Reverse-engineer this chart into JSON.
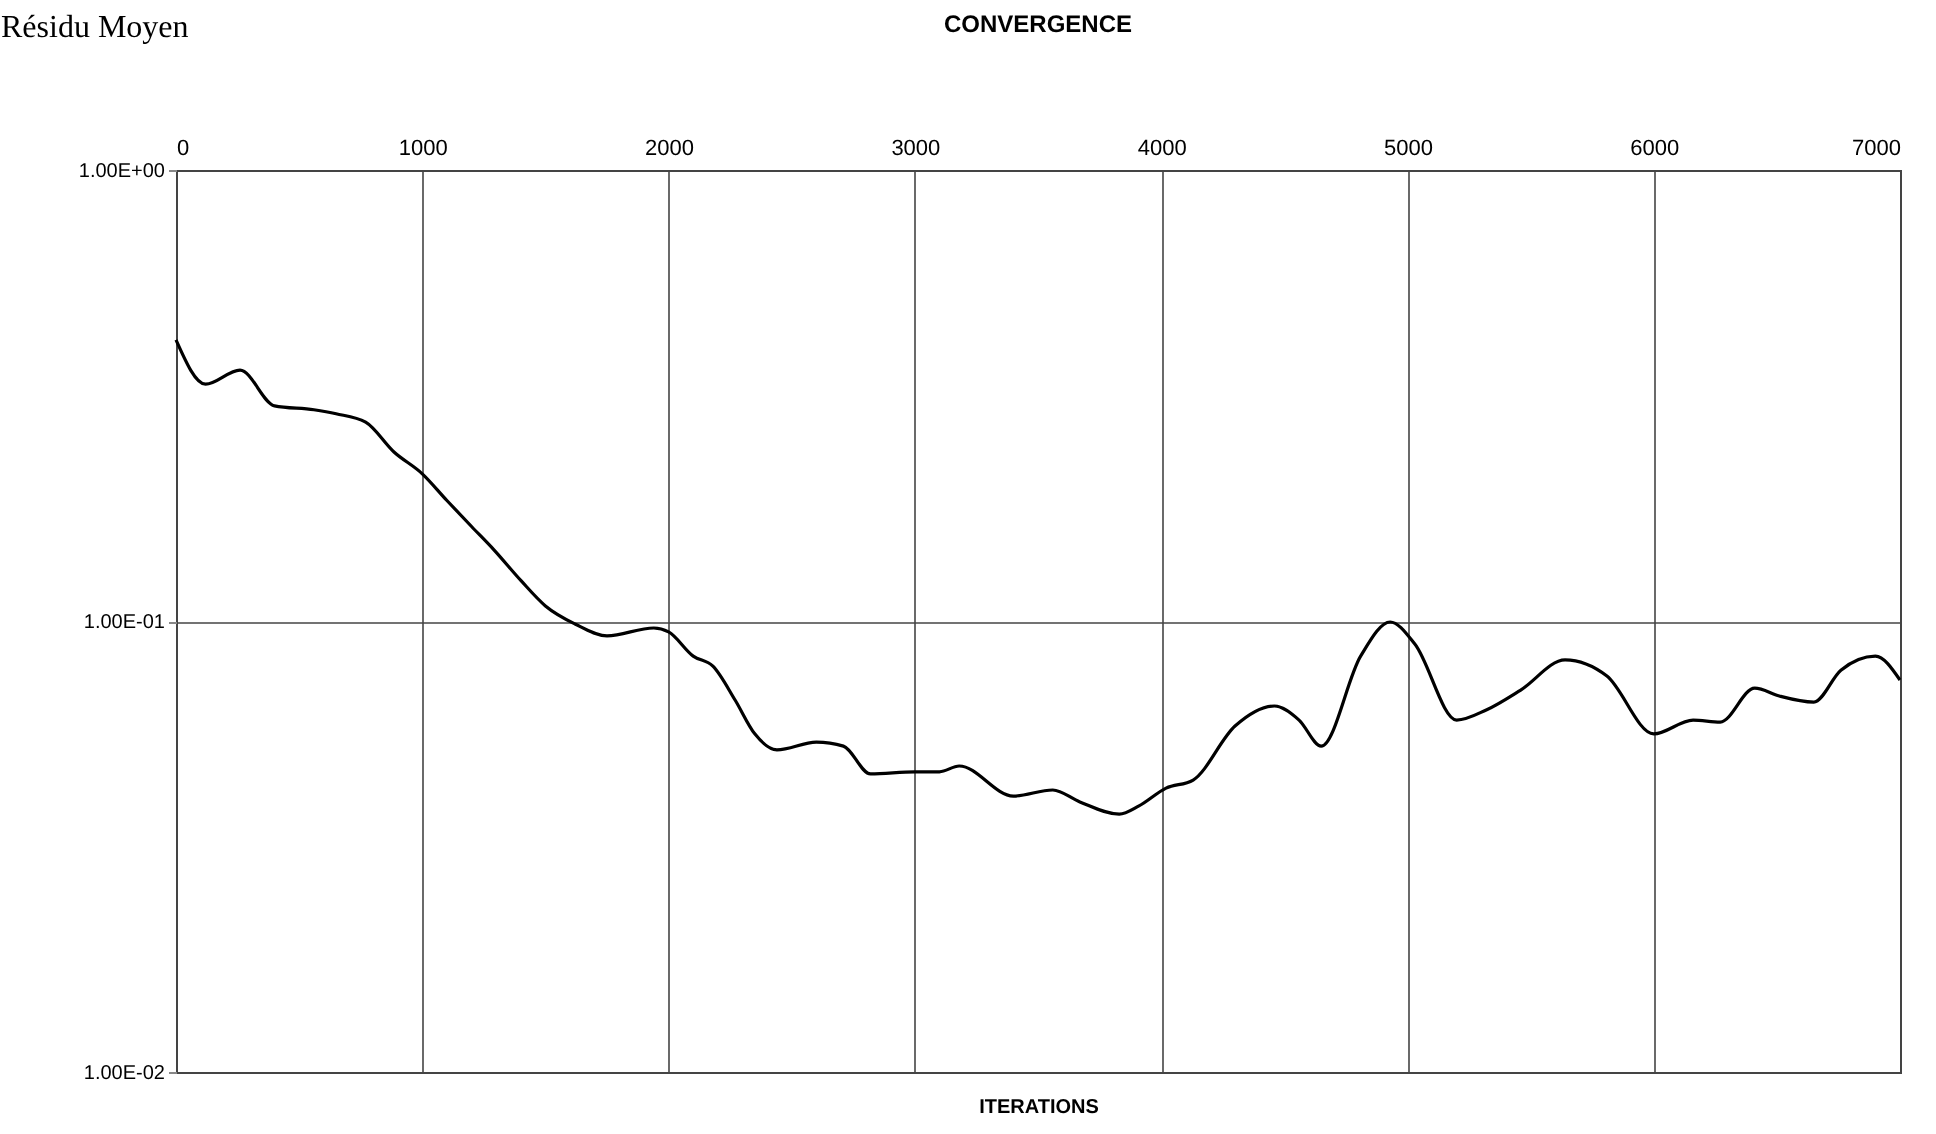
{
  "chart_data": {
    "type": "line",
    "title": "CONVERGENCE",
    "xlabel": "ITERATIONS",
    "ylabel": "Résidu Moyen",
    "log": "y",
    "grid": true,
    "marker": "none",
    "line_style": "solid",
    "xlim": [
      0,
      7000
    ],
    "xticks": [
      0,
      1000,
      2000,
      3000,
      4000,
      5000,
      6000,
      7000
    ],
    "ylim": [
      0.01,
      1
    ],
    "yticks": [
      {
        "value": 1,
        "label": "1.00E+00"
      },
      {
        "value": 0.1,
        "label": "1.00E-01"
      },
      {
        "value": 0.01,
        "label": "1.00E-02"
      }
    ],
    "x": [
      0,
      120,
      260,
      400,
      560,
      650,
      770,
      885,
      1000,
      1100,
      1200,
      1290,
      1400,
      1500,
      1620,
      1750,
      1940,
      2000,
      2100,
      2180,
      2270,
      2350,
      2440,
      2600,
      2710,
      2820,
      3000,
      3100,
      3180,
      3400,
      3560,
      3670,
      3830,
      3910,
      4020,
      4130,
      4300,
      4460,
      4560,
      4650,
      4810,
      4930,
      5030,
      5200,
      5320,
      5460,
      5640,
      5810,
      6000,
      6160,
      6270,
      6410,
      6510,
      6650,
      6760,
      6900,
      7000
    ],
    "series": [
      {
        "color": "#000000",
        "values": [
          0.42,
          0.335,
          0.36,
          0.3,
          0.294,
          0.288,
          0.276,
          0.237,
          0.212,
          0.185,
          0.162,
          0.144,
          0.123,
          0.108,
          0.0985,
          0.0927,
          0.0965,
          0.0946,
          0.0836,
          0.0794,
          0.0668,
          0.0562,
          0.0518,
          0.0539,
          0.0528,
          0.0458,
          0.0463,
          0.0463,
          0.0477,
          0.0409,
          0.0422,
          0.0397,
          0.0373,
          0.0389,
          0.0426,
          0.0444,
          0.0585,
          0.0648,
          0.0603,
          0.0528,
          0.0836,
          0.0995,
          0.0889,
          0.0603,
          0.0635,
          0.0703,
          0.082,
          0.0755,
          0.0562,
          0.0603,
          0.0597,
          0.071,
          0.0682,
          0.0661,
          0.0778,
          0.0836,
          0.074
        ]
      }
    ]
  }
}
